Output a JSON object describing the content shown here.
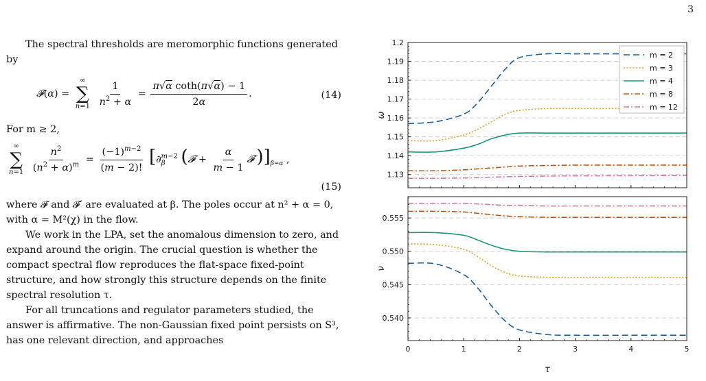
{
  "page_number": "3",
  "text": {
    "p1": "The spectral thresholds are meromorphic functions generated by",
    "eq14_number": "(14)",
    "p2_intro": "For m ≥ 2,",
    "eq15_number": "(15)",
    "p3": "where 𝓕 and 𝓕′ are evaluated at β. The poles occur at n² + α = 0, with α = M²(χ) in the flow.",
    "p4": "We work in the LPA, set the anomalous dimension to zero, and expand around the origin. The crucial question is whether the compact spectral flow reproduces the flat-space fixed-point structure, and how strongly this structure depends on the finite spectral resolution τ.",
    "p5": "For all truncations and regulator parameters studied, the answer is affirmative. The non-Gaussian fixed point persists on S³, has one relevant direction, and approaches"
  },
  "figure": {
    "top_ylabel": "ω",
    "bottom_ylabel": "ν",
    "xlabel": "τ",
    "top_ticks": [
      "1.2",
      "1.19",
      "1.18",
      "1.17",
      "1.16",
      "1.15",
      "1.14",
      "1.13"
    ],
    "bottom_ticks": [
      "0.555",
      "0.550",
      "0.545",
      "0.540"
    ],
    "x_ticks": [
      "0",
      "1",
      "2",
      "3",
      "4",
      "5"
    ],
    "legend": [
      "m = 2",
      "m = 3",
      "m = 4",
      "m = 8",
      "m = 12"
    ]
  },
  "chart_data": [
    {
      "type": "line",
      "xlabel": "τ",
      "ylabel": "ω",
      "xlim": [
        0,
        5
      ],
      "ylim": [
        1.123,
        1.2
      ],
      "grid": "horizontal dashed",
      "legend_position": "top-right",
      "x": [
        0,
        0.5,
        1.0,
        1.25,
        1.5,
        1.75,
        2.0,
        2.5,
        3.0,
        4.0,
        5.0
      ],
      "series": [
        {
          "name": "m = 2",
          "style": "dashed",
          "color": "#1f5f99",
          "values": [
            1.157,
            1.158,
            1.162,
            1.168,
            1.177,
            1.186,
            1.192,
            1.194,
            1.194,
            1.194,
            1.194
          ]
        },
        {
          "name": "m = 3",
          "style": "dotted",
          "color": "#e0a21b",
          "values": [
            1.148,
            1.148,
            1.151,
            1.154,
            1.158,
            1.162,
            1.164,
            1.165,
            1.165,
            1.165,
            1.165
          ]
        },
        {
          "name": "m = 4",
          "style": "solid",
          "color": "#17967a",
          "values": [
            1.142,
            1.142,
            1.144,
            1.146,
            1.149,
            1.151,
            1.152,
            1.152,
            1.152,
            1.152,
            1.152
          ]
        },
        {
          "name": "m = 8",
          "style": "dashdot",
          "color": "#c0580f",
          "values": [
            1.132,
            1.132,
            1.1325,
            1.133,
            1.1335,
            1.134,
            1.1345,
            1.1348,
            1.135,
            1.135,
            1.135
          ]
        },
        {
          "name": "m = 12",
          "style": "dashdot",
          "color": "#d07aa8",
          "values": [
            1.128,
            1.128,
            1.1282,
            1.1284,
            1.1286,
            1.1288,
            1.129,
            1.1292,
            1.1293,
            1.1294,
            1.1295
          ]
        }
      ]
    },
    {
      "type": "line",
      "xlabel": "τ",
      "ylabel": "ν",
      "xlim": [
        0,
        5
      ],
      "ylim": [
        0.5366,
        0.5582
      ],
      "grid": "horizontal dashed",
      "x": [
        0,
        0.5,
        1.0,
        1.25,
        1.5,
        1.75,
        2.0,
        2.5,
        3.0,
        4.0,
        5.0
      ],
      "series": [
        {
          "name": "m = 2",
          "style": "dashed",
          "color": "#1f5f99",
          "values": [
            0.5482,
            0.5481,
            0.5465,
            0.5445,
            0.5418,
            0.5395,
            0.5382,
            0.5375,
            0.5374,
            0.5374,
            0.5374
          ]
        },
        {
          "name": "m = 3",
          "style": "dotted",
          "color": "#e0a21b",
          "values": [
            0.5511,
            0.551,
            0.5503,
            0.5492,
            0.5478,
            0.5468,
            0.5463,
            0.5461,
            0.5461,
            0.5461,
            0.5461
          ]
        },
        {
          "name": "m = 4",
          "style": "solid",
          "color": "#17967a",
          "values": [
            0.5528,
            0.5528,
            0.5524,
            0.5517,
            0.5509,
            0.5503,
            0.55,
            0.5499,
            0.5499,
            0.5499,
            0.5499
          ]
        },
        {
          "name": "m = 8",
          "style": "dashdot",
          "color": "#c0580f",
          "values": [
            0.556,
            0.556,
            0.5559,
            0.5557,
            0.5555,
            0.5553,
            0.5552,
            0.5551,
            0.5551,
            0.5551,
            0.5551
          ]
        },
        {
          "name": "m = 12",
          "style": "dashdot",
          "color": "#d07aa8",
          "values": [
            0.5572,
            0.5572,
            0.5572,
            0.5571,
            0.557,
            0.5569,
            0.5569,
            0.5568,
            0.5568,
            0.5568,
            0.5568
          ]
        }
      ]
    }
  ]
}
